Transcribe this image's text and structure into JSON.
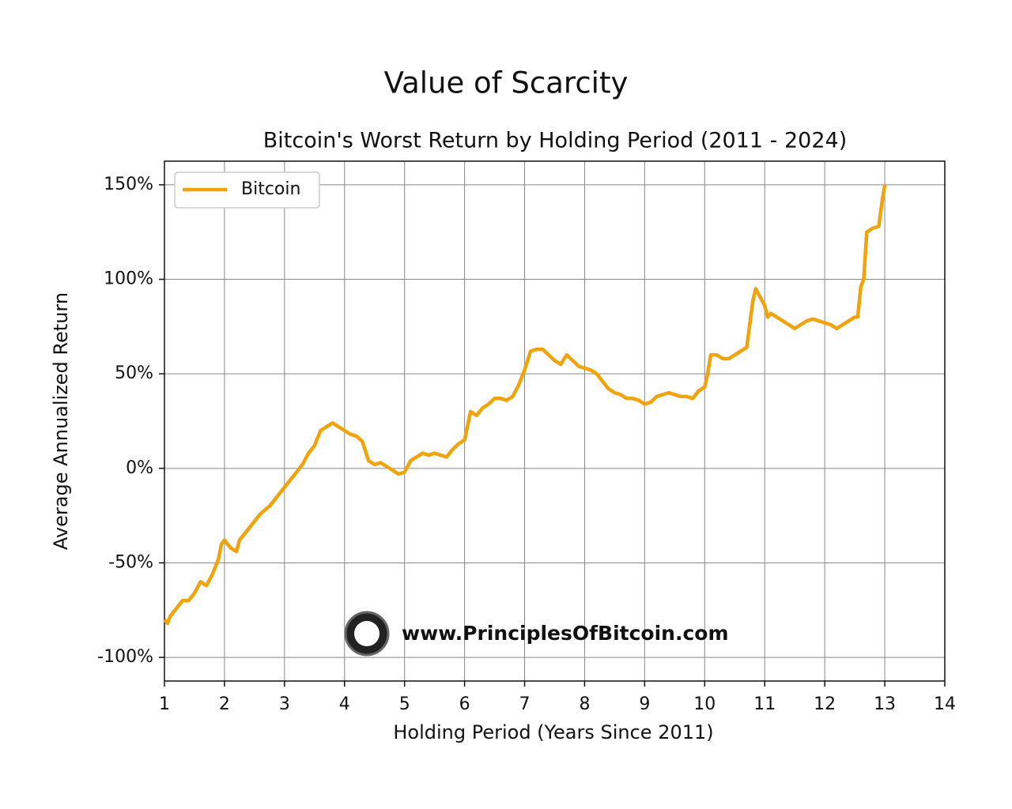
{
  "chart_data": {
    "type": "line",
    "title": "Value of Scarcity",
    "subtitle": "Bitcoin's Worst Return by Holding Period (2011 - 2024)",
    "x_label": "Holding Period (Years Since 2011)",
    "y_label": "Average Annualized Return",
    "annotation": "www.PrinciplesOfBitcoin.com",
    "grid": true,
    "legend": "upper left",
    "xlim": [
      1,
      14
    ],
    "xticks": [
      1,
      2,
      3,
      4,
      5,
      6,
      7,
      8,
      9,
      10,
      11,
      12,
      13,
      14
    ],
    "ylim": [
      -112.5,
      162.5
    ],
    "yticks": [
      {
        "value": -100,
        "label": "-100%"
      },
      {
        "value": -50,
        "label": "-50%"
      },
      {
        "value": 0,
        "label": "0%"
      },
      {
        "value": 50,
        "label": "50%"
      },
      {
        "value": 100,
        "label": "100%"
      },
      {
        "value": 150,
        "label": "150%"
      }
    ],
    "x": [
      1.0,
      1.05,
      1.1,
      1.2,
      1.3,
      1.4,
      1.5,
      1.6,
      1.7,
      1.8,
      1.9,
      1.95,
      2.0,
      2.1,
      2.2,
      2.25,
      2.35,
      2.5,
      2.6,
      2.75,
      2.9,
      3.0,
      3.1,
      3.2,
      3.3,
      3.4,
      3.5,
      3.6,
      3.7,
      3.8,
      3.9,
      4.0,
      4.1,
      4.2,
      4.3,
      4.4,
      4.5,
      4.6,
      4.7,
      4.8,
      4.9,
      5.0,
      5.1,
      5.2,
      5.3,
      5.4,
      5.5,
      5.6,
      5.7,
      5.8,
      5.9,
      6.0,
      6.1,
      6.2,
      6.3,
      6.4,
      6.5,
      6.6,
      6.7,
      6.8,
      6.9,
      7.0,
      7.1,
      7.2,
      7.3,
      7.4,
      7.5,
      7.6,
      7.7,
      7.8,
      7.9,
      8.0,
      8.1,
      8.2,
      8.3,
      8.4,
      8.5,
      8.6,
      8.7,
      8.8,
      8.9,
      9.0,
      9.1,
      9.2,
      9.3,
      9.4,
      9.5,
      9.6,
      9.7,
      9.8,
      9.9,
      10.0,
      10.05,
      10.1,
      10.2,
      10.3,
      10.4,
      10.5,
      10.6,
      10.7,
      10.8,
      10.85,
      10.9,
      11.0,
      11.05,
      11.1,
      11.2,
      11.3,
      11.4,
      11.5,
      11.6,
      11.7,
      11.8,
      11.9,
      12.0,
      12.1,
      12.2,
      12.3,
      12.4,
      12.5,
      12.55,
      12.6,
      12.65,
      12.7,
      12.8,
      12.9,
      12.95,
      13.0
    ],
    "series": [
      {
        "name": "Bitcoin",
        "color": "#f0a30a",
        "values": [
          -80,
          -82,
          -78,
          -74,
          -70,
          -70,
          -66,
          -60,
          -62,
          -56,
          -48,
          -40,
          -38,
          -42,
          -44,
          -38,
          -34,
          -28,
          -24,
          -20,
          -14,
          -10,
          -6,
          -2,
          2,
          8,
          12,
          20,
          22,
          24,
          22,
          20,
          18,
          17,
          14,
          4,
          2,
          3,
          1,
          -1,
          -3,
          -2,
          4,
          6,
          8,
          7,
          8,
          7,
          6,
          10,
          13,
          15,
          30,
          28,
          32,
          34,
          37,
          37,
          36,
          38,
          44,
          52,
          62,
          63,
          63,
          60,
          57,
          55,
          60,
          57,
          54,
          53,
          52,
          50,
          46,
          42,
          40,
          39,
          37,
          37,
          36,
          34,
          35,
          38,
          39,
          40,
          39,
          38,
          38,
          37,
          41,
          43,
          50,
          60,
          60,
          58,
          58,
          60,
          62,
          64,
          88,
          95,
          92,
          86,
          80,
          82,
          80,
          78,
          76,
          74,
          76,
          78,
          79,
          78,
          77,
          76,
          74,
          76,
          78,
          80,
          80,
          96,
          100,
          125,
          127,
          128,
          140,
          150
        ]
      }
    ]
  }
}
